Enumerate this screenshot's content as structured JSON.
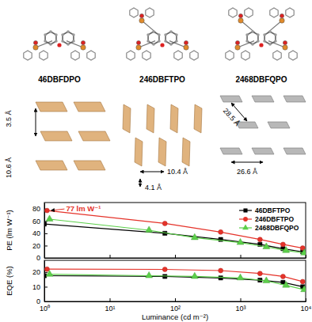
{
  "structures": [
    {
      "label": "46DBFDPO",
      "distances": [
        "10.6 Å",
        "3.5 Å"
      ]
    },
    {
      "label": "246DBFTPO",
      "distances": [
        "10.4 Å",
        "4.1 Å"
      ]
    },
    {
      "label": "2468DBFQPO",
      "distances": [
        "28.5 Å",
        "26.6 Å"
      ]
    }
  ],
  "chart_data": [
    {
      "type": "line",
      "ylabel": "PE (lm W⁻¹)",
      "log": "x",
      "xlim": [
        1,
        10000
      ],
      "xticks": [
        1,
        10,
        100,
        1000,
        10000
      ],
      "ylim": [
        0,
        90
      ],
      "yticks": [
        0,
        20,
        40,
        60,
        80
      ],
      "tick_labels": "y",
      "legend": "upper right",
      "annotations": [
        {
          "text": "77 lm W⁻¹",
          "x": 1.1,
          "y": 77,
          "color": "#e5332a"
        }
      ],
      "series": [
        {
          "name": "46DBFTPO",
          "color": "#000000",
          "marker": "square",
          "x": [
            1,
            70,
            500,
            2000,
            4500,
            9000
          ],
          "values": [
            55,
            40,
            30,
            22,
            15,
            10
          ]
        },
        {
          "name": "246DBFTPO",
          "color": "#e5332a",
          "marker": "circle",
          "x": [
            1.1,
            70,
            500,
            2000,
            4500,
            9000
          ],
          "values": [
            77,
            56,
            42,
            30,
            22,
            16
          ]
        },
        {
          "name": "2468DBFQPO",
          "color": "#5ccf4a",
          "marker": "triangle",
          "x": [
            1.2,
            40,
            200,
            1000,
            2500,
            5000,
            9500
          ],
          "values": [
            63,
            45,
            33,
            25,
            18,
            12,
            8
          ]
        }
      ]
    },
    {
      "type": "line",
      "ylabel": "EQE (%)",
      "xlabel": "Luminance (cd m⁻²)",
      "log": "x",
      "xlim": [
        1,
        10000
      ],
      "xticks": [
        {
          "value": 1,
          "label": "10⁰"
        },
        {
          "value": 10,
          "label": "10¹"
        },
        {
          "value": 100,
          "label": "10²"
        },
        {
          "value": 1000,
          "label": "10³"
        },
        {
          "value": 10000,
          "label": "10⁴"
        }
      ],
      "ylim": [
        0,
        28
      ],
      "yticks": [
        0,
        10,
        20
      ],
      "series": [
        {
          "name": "46DBFTPO",
          "color": "#000000",
          "marker": "square",
          "x": [
            1,
            70,
            500,
            2000,
            4500,
            9000
          ],
          "values": [
            17.5,
            17,
            16,
            14.5,
            13,
            10
          ]
        },
        {
          "name": "246DBFTPO",
          "color": "#e5332a",
          "marker": "circle",
          "x": [
            1.1,
            70,
            500,
            2000,
            4500,
            9000
          ],
          "values": [
            22,
            21.8,
            21,
            19,
            17,
            13.5
          ]
        },
        {
          "name": "2468DBFQPO",
          "color": "#5ccf4a",
          "marker": "triangle",
          "x": [
            1.2,
            40,
            200,
            1000,
            2500,
            5000,
            9500
          ],
          "values": [
            18.5,
            17.5,
            17,
            16,
            14,
            11,
            8
          ]
        }
      ]
    }
  ]
}
